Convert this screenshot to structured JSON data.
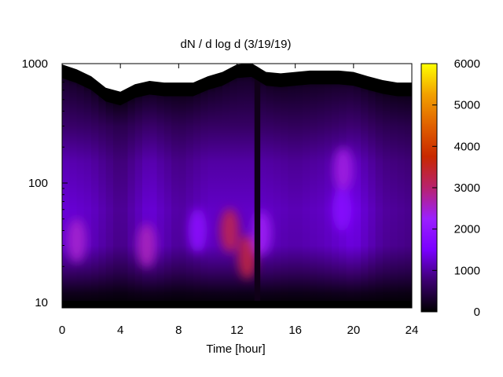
{
  "chart_data": {
    "type": "heatmap",
    "title": "dN / d log d (3/19/19)",
    "xlabel": "Time [hour]",
    "ylabel": "",
    "xlim": [
      0,
      24
    ],
    "ylim": [
      9,
      1000
    ],
    "y_scale": "log",
    "x_ticks": [
      0,
      4,
      8,
      12,
      16,
      20,
      24
    ],
    "x_tick_labels": [
      "0",
      "4",
      "8",
      "12",
      "16",
      "20",
      "24"
    ],
    "y_ticks": [
      10,
      100,
      1000
    ],
    "y_tick_labels": [
      "10",
      "100",
      "1000"
    ],
    "colorbar": {
      "range": [
        0,
        6000
      ],
      "ticks": [
        0,
        1000,
        2000,
        3000,
        4000,
        5000,
        6000
      ],
      "tick_labels": [
        "0",
        "1000",
        "2000",
        "3000",
        "4000",
        "5000",
        "6000"
      ],
      "colormap": [
        "#000000",
        "#3c0070",
        "#7a00ff",
        "#9b20ff",
        "#b8226e",
        "#c82800",
        "#e06000",
        "#f2a000",
        "#ffff00"
      ]
    },
    "upper_data_edge": [
      [
        0,
        880
      ],
      [
        1,
        800
      ],
      [
        2,
        700
      ],
      [
        3,
        560
      ],
      [
        4,
        520
      ],
      [
        5,
        600
      ],
      [
        6,
        640
      ],
      [
        7,
        620
      ],
      [
        8,
        620
      ],
      [
        9,
        620
      ],
      [
        10,
        700
      ],
      [
        11,
        760
      ],
      [
        12,
        880
      ],
      [
        13,
        900
      ],
      [
        14,
        760
      ],
      [
        15,
        740
      ],
      [
        16,
        760
      ],
      [
        17,
        780
      ],
      [
        18,
        780
      ],
      [
        19,
        780
      ],
      [
        20,
        760
      ],
      [
        21,
        700
      ],
      [
        22,
        650
      ],
      [
        23,
        620
      ],
      [
        24,
        620
      ]
    ],
    "background_level": [
      [
        0,
        1300
      ],
      [
        2,
        1200
      ],
      [
        4,
        900
      ],
      [
        6,
        1300
      ],
      [
        8,
        1000
      ],
      [
        10,
        1200
      ],
      [
        12,
        1200
      ],
      [
        14,
        1200
      ],
      [
        16,
        1100
      ],
      [
        18,
        1200
      ],
      [
        20,
        1400
      ],
      [
        22,
        1000
      ],
      [
        24,
        900
      ]
    ],
    "features": [
      {
        "t": 1.0,
        "d": 33,
        "level": 2500
      },
      {
        "t": 5.8,
        "d": 30,
        "level": 2600
      },
      {
        "t": 9.3,
        "d": 40,
        "level": 1900
      },
      {
        "t": 11.5,
        "d": 40,
        "level": 3200
      },
      {
        "t": 12.7,
        "d": 24,
        "level": 3300
      },
      {
        "t": 13.7,
        "d": 38,
        "level": 2300
      },
      {
        "t": 19.3,
        "d": 130,
        "level": 2400
      },
      {
        "t": 19.2,
        "d": 60,
        "level": 1800
      }
    ],
    "data_gap": {
      "t": [
        13.2,
        13.6
      ]
    }
  }
}
